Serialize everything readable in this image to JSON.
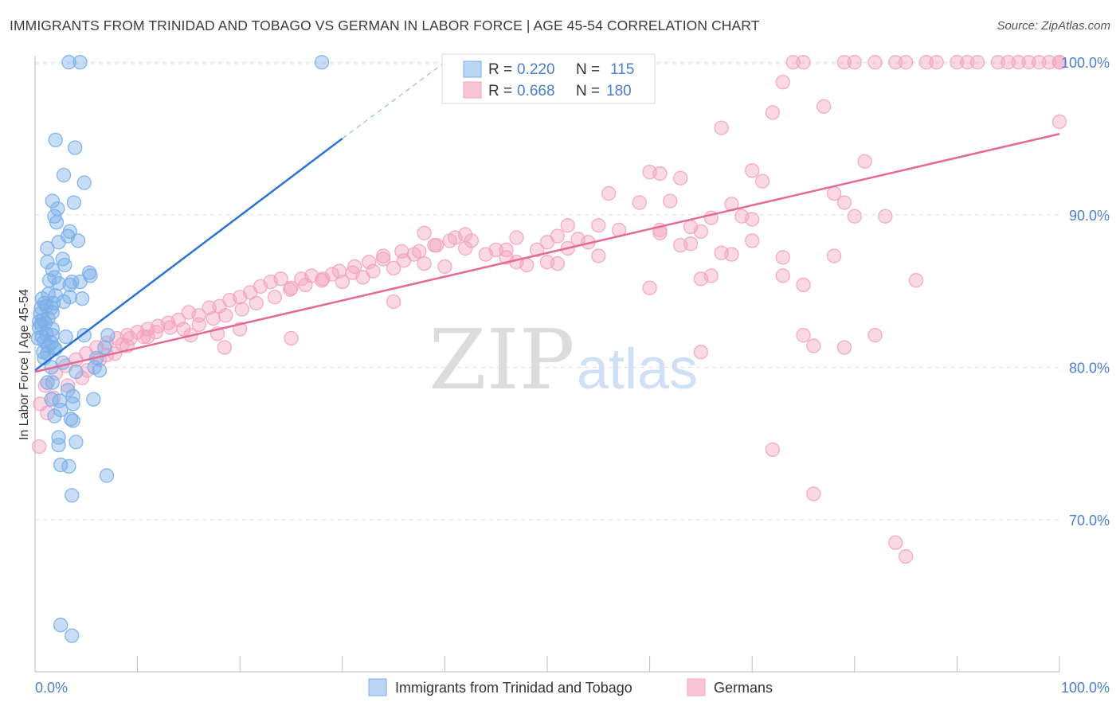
{
  "title": "IMMIGRANTS FROM TRINIDAD AND TOBAGO VS GERMAN IN LABOR FORCE | AGE 45-54 CORRELATION CHART",
  "source": "Source: ZipAtlas.com",
  "watermark": {
    "zip": "ZIP",
    "atlas": "atlas"
  },
  "colors": {
    "blue": "#7aaee8",
    "blue_line": "#2a72d5",
    "pink": "#f4a3bf",
    "pink_line": "#e46a95",
    "axis_label": "#4a7fcf"
  },
  "stats": {
    "r_label": "R =",
    "n_label": "N =",
    "blue": {
      "r": "0.220",
      "n": "115"
    },
    "pink": {
      "r": "0.668",
      "n": "180"
    }
  },
  "chart_data": {
    "type": "scatter",
    "xlabel": "",
    "ylabel": "In Labor Force | Age 45-54",
    "xlim": [
      0,
      100
    ],
    "ylim": [
      61.5,
      101.5
    ],
    "x_tick_labels": [
      "0.0%",
      "100.0%"
    ],
    "y_ticks": [
      70,
      80,
      90,
      100
    ],
    "y_tick_labels": [
      "70.0%",
      "80.0%",
      "90.0%",
      "100.0%"
    ],
    "grid": true,
    "legend_position": "top-center",
    "series": [
      {
        "name": "Immigrants from Trinidad and Tobago",
        "color": "#7aaee8",
        "trend": {
          "x": [
            0,
            30
          ],
          "y": [
            79.8,
            95.0
          ],
          "dashed_to": [
            40,
            100
          ]
        },
        "points": [
          [
            3.3,
            100
          ],
          [
            4.4,
            100
          ],
          [
            28,
            100
          ],
          [
            2.0,
            94.9
          ],
          [
            3.9,
            94.4
          ],
          [
            2.8,
            92.6
          ],
          [
            4.8,
            92.1
          ],
          [
            1.7,
            90.9
          ],
          [
            3.8,
            90.8
          ],
          [
            2.2,
            90.4
          ],
          [
            1.9,
            89.9
          ],
          [
            2.1,
            89.5
          ],
          [
            3.4,
            88.9
          ],
          [
            3.2,
            88.6
          ],
          [
            4.2,
            88.3
          ],
          [
            2.3,
            88.2
          ],
          [
            1.2,
            87.8
          ],
          [
            2.7,
            87.1
          ],
          [
            1.2,
            86.9
          ],
          [
            2.9,
            86.7
          ],
          [
            1.7,
            86.4
          ],
          [
            5.3,
            86.2
          ],
          [
            5.4,
            86.0
          ],
          [
            1.9,
            85.9
          ],
          [
            1.4,
            85.7
          ],
          [
            3.6,
            85.6
          ],
          [
            4.4,
            85.6
          ],
          [
            2.3,
            85.5
          ],
          [
            3.4,
            85.4
          ],
          [
            1.3,
            84.8
          ],
          [
            2.0,
            84.7
          ],
          [
            0.7,
            84.5
          ],
          [
            3.4,
            84.6
          ],
          [
            4.6,
            84.5
          ],
          [
            0.9,
            84.2
          ],
          [
            1.8,
            84.2
          ],
          [
            2.8,
            84.3
          ],
          [
            0.6,
            83.9
          ],
          [
            1.1,
            84.0
          ],
          [
            1.6,
            83.9
          ],
          [
            0.5,
            83.5
          ],
          [
            1.3,
            83.2
          ],
          [
            1.7,
            83.6
          ],
          [
            0.8,
            83.1
          ],
          [
            0.4,
            83.0
          ],
          [
            1.0,
            82.9
          ],
          [
            0.6,
            82.8
          ],
          [
            0.4,
            82.6
          ],
          [
            1.7,
            82.5
          ],
          [
            1.1,
            82.2
          ],
          [
            1.7,
            82.1
          ],
          [
            0.7,
            82.0
          ],
          [
            3.0,
            82.0
          ],
          [
            4.8,
            82.1
          ],
          [
            7.1,
            82.1
          ],
          [
            0.3,
            81.9
          ],
          [
            0.9,
            81.7
          ],
          [
            1.6,
            81.6
          ],
          [
            1.3,
            81.4
          ],
          [
            1.8,
            81.3
          ],
          [
            2.0,
            81.2
          ],
          [
            0.8,
            81.0
          ],
          [
            1.2,
            80.9
          ],
          [
            6.8,
            81.3
          ],
          [
            6.0,
            80.6
          ],
          [
            0.9,
            80.6
          ],
          [
            2.7,
            80.3
          ],
          [
            1.6,
            80.0
          ],
          [
            5.8,
            80.0
          ],
          [
            4.0,
            79.7
          ],
          [
            6.3,
            79.8
          ],
          [
            1.2,
            79.0
          ],
          [
            1.7,
            79.0
          ],
          [
            3.2,
            78.5
          ],
          [
            3.7,
            78.1
          ],
          [
            5.7,
            77.9
          ],
          [
            1.6,
            77.9
          ],
          [
            2.4,
            77.8
          ],
          [
            3.7,
            77.6
          ],
          [
            2.5,
            77.2
          ],
          [
            1.9,
            76.8
          ],
          [
            3.5,
            76.6
          ],
          [
            3.7,
            76.5
          ],
          [
            2.3,
            75.4
          ],
          [
            4.0,
            75.1
          ],
          [
            2.3,
            74.9
          ],
          [
            2.5,
            73.6
          ],
          [
            3.3,
            73.5
          ],
          [
            7.0,
            72.9
          ],
          [
            3.6,
            71.6
          ],
          [
            2.5,
            63.1
          ],
          [
            3.6,
            62.4
          ]
        ]
      },
      {
        "name": "Germans",
        "color": "#f4a3bf",
        "trend": {
          "x": [
            0,
            100
          ],
          "y": [
            79.7,
            95.3
          ]
        },
        "points": [
          [
            74,
            100
          ],
          [
            75,
            100
          ],
          [
            79,
            100
          ],
          [
            80,
            100
          ],
          [
            82,
            100
          ],
          [
            84,
            100
          ],
          [
            85,
            100
          ],
          [
            87,
            100
          ],
          [
            88,
            100
          ],
          [
            90,
            100
          ],
          [
            91,
            100
          ],
          [
            92,
            100
          ],
          [
            94,
            100
          ],
          [
            95,
            100
          ],
          [
            96,
            100
          ],
          [
            97,
            100
          ],
          [
            98,
            100
          ],
          [
            99,
            100
          ],
          [
            100,
            100
          ],
          [
            100,
            100
          ],
          [
            73,
            98.7
          ],
          [
            77,
            97.1
          ],
          [
            72,
            96.7
          ],
          [
            67,
            95.7
          ],
          [
            100,
            96.1
          ],
          [
            81,
            93.5
          ],
          [
            60,
            92.8
          ],
          [
            61,
            92.7
          ],
          [
            63,
            92.4
          ],
          [
            70,
            92.9
          ],
          [
            71,
            92.2
          ],
          [
            78,
            91.4
          ],
          [
            56,
            91.4
          ],
          [
            59,
            90.8
          ],
          [
            62,
            90.9
          ],
          [
            68,
            90.7
          ],
          [
            79,
            90.8
          ],
          [
            52,
            89.3
          ],
          [
            55,
            89.3
          ],
          [
            57,
            89.0
          ],
          [
            61,
            89.0
          ],
          [
            61,
            88.8
          ],
          [
            64,
            89.2
          ],
          [
            65,
            88.9
          ],
          [
            66,
            89.8
          ],
          [
            69,
            89.9
          ],
          [
            70,
            89.7
          ],
          [
            80,
            89.9
          ],
          [
            83,
            89.9
          ],
          [
            50,
            88.2
          ],
          [
            51,
            88.6
          ],
          [
            53,
            88.4
          ],
          [
            47,
            88.5
          ],
          [
            49,
            87.7
          ],
          [
            46,
            87.7
          ],
          [
            42,
            88.7
          ],
          [
            41,
            88.5
          ],
          [
            38,
            88.8
          ],
          [
            39,
            88.0
          ],
          [
            42,
            87.8
          ],
          [
            44,
            87.4
          ],
          [
            45,
            87.7
          ],
          [
            46,
            87.2
          ],
          [
            47,
            86.9
          ],
          [
            48,
            86.7
          ],
          [
            50,
            86.9
          ],
          [
            51,
            86.8
          ],
          [
            52,
            87.8
          ],
          [
            54,
            88.2
          ],
          [
            55,
            87.3
          ],
          [
            63,
            88.0
          ],
          [
            64,
            88.1
          ],
          [
            67,
            87.5
          ],
          [
            70,
            88.3
          ],
          [
            73,
            87.2
          ],
          [
            34,
            87.3
          ],
          [
            36,
            87.0
          ],
          [
            38,
            86.8
          ],
          [
            40,
            86.6
          ],
          [
            35,
            86.5
          ],
          [
            37,
            87.4
          ],
          [
            33,
            86.3
          ],
          [
            31,
            86.2
          ],
          [
            32,
            85.9
          ],
          [
            30,
            85.6
          ],
          [
            29,
            86.1
          ],
          [
            28,
            85.7
          ],
          [
            27,
            86.0
          ],
          [
            26,
            85.8
          ],
          [
            24,
            85.8
          ],
          [
            25,
            85.2
          ],
          [
            23,
            85.6
          ],
          [
            22,
            85.3
          ],
          [
            21,
            84.9
          ],
          [
            20,
            84.6
          ],
          [
            19,
            84.4
          ],
          [
            18,
            84.0
          ],
          [
            17,
            83.9
          ],
          [
            16,
            83.4
          ],
          [
            15,
            83.6
          ],
          [
            14,
            83.1
          ],
          [
            13,
            82.9
          ],
          [
            12,
            82.7
          ],
          [
            11,
            82.5
          ],
          [
            10,
            82.3
          ],
          [
            9,
            82.1
          ],
          [
            8,
            81.9
          ],
          [
            7,
            81.6
          ],
          [
            6,
            81.3
          ],
          [
            5,
            80.9
          ],
          [
            4,
            80.5
          ],
          [
            3,
            80.1
          ],
          [
            2,
            79.6
          ],
          [
            1,
            78.8
          ],
          [
            0.5,
            77.6
          ],
          [
            0.4,
            74.8
          ],
          [
            1.2,
            77.0
          ],
          [
            1.8,
            78.0
          ],
          [
            3.2,
            78.8
          ],
          [
            4.6,
            79.3
          ],
          [
            5.1,
            79.8
          ],
          [
            6.3,
            80.5
          ],
          [
            7.8,
            80.9
          ],
          [
            8.5,
            81.5
          ],
          [
            9.3,
            81.9
          ],
          [
            10.6,
            82.0
          ],
          [
            11.8,
            82.3
          ],
          [
            13.2,
            82.6
          ],
          [
            14.5,
            82.5
          ],
          [
            16.0,
            82.8
          ],
          [
            17.4,
            83.2
          ],
          [
            18.6,
            83.4
          ],
          [
            20.2,
            83.8
          ],
          [
            21.6,
            84.2
          ],
          [
            23.4,
            84.6
          ],
          [
            24.9,
            85.1
          ],
          [
            26.4,
            85.4
          ],
          [
            28.1,
            85.8
          ],
          [
            29.7,
            86.3
          ],
          [
            31.2,
            86.6
          ],
          [
            32.6,
            86.9
          ],
          [
            34.0,
            87.1
          ],
          [
            35.8,
            87.6
          ],
          [
            37.5,
            87.6
          ],
          [
            39.2,
            88.0
          ],
          [
            40.5,
            88.3
          ],
          [
            42.6,
            88.3
          ],
          [
            20.0,
            82.5
          ],
          [
            17.8,
            82.2
          ],
          [
            15.2,
            82.1
          ],
          [
            11.0,
            82.0
          ],
          [
            9.0,
            81.4
          ],
          [
            7.0,
            80.8
          ],
          [
            18.5,
            81.3
          ],
          [
            25.0,
            81.9
          ],
          [
            35.0,
            84.3
          ],
          [
            60.0,
            85.2
          ],
          [
            65.0,
            85.8
          ],
          [
            66.0,
            86.0
          ],
          [
            68.0,
            87.4
          ],
          [
            73.0,
            86.0
          ],
          [
            75.0,
            85.4
          ],
          [
            78.0,
            87.3
          ],
          [
            86.0,
            85.7
          ],
          [
            65.0,
            81.0
          ],
          [
            75.0,
            82.1
          ],
          [
            76.0,
            81.4
          ],
          [
            79.0,
            81.3
          ],
          [
            82.0,
            82.1
          ],
          [
            72.0,
            74.6
          ],
          [
            76.0,
            71.7
          ],
          [
            84.0,
            68.5
          ],
          [
            85.0,
            67.6
          ]
        ]
      }
    ]
  },
  "legend": {
    "items": [
      "Immigrants from Trinidad and Tobago",
      "Germans"
    ]
  }
}
